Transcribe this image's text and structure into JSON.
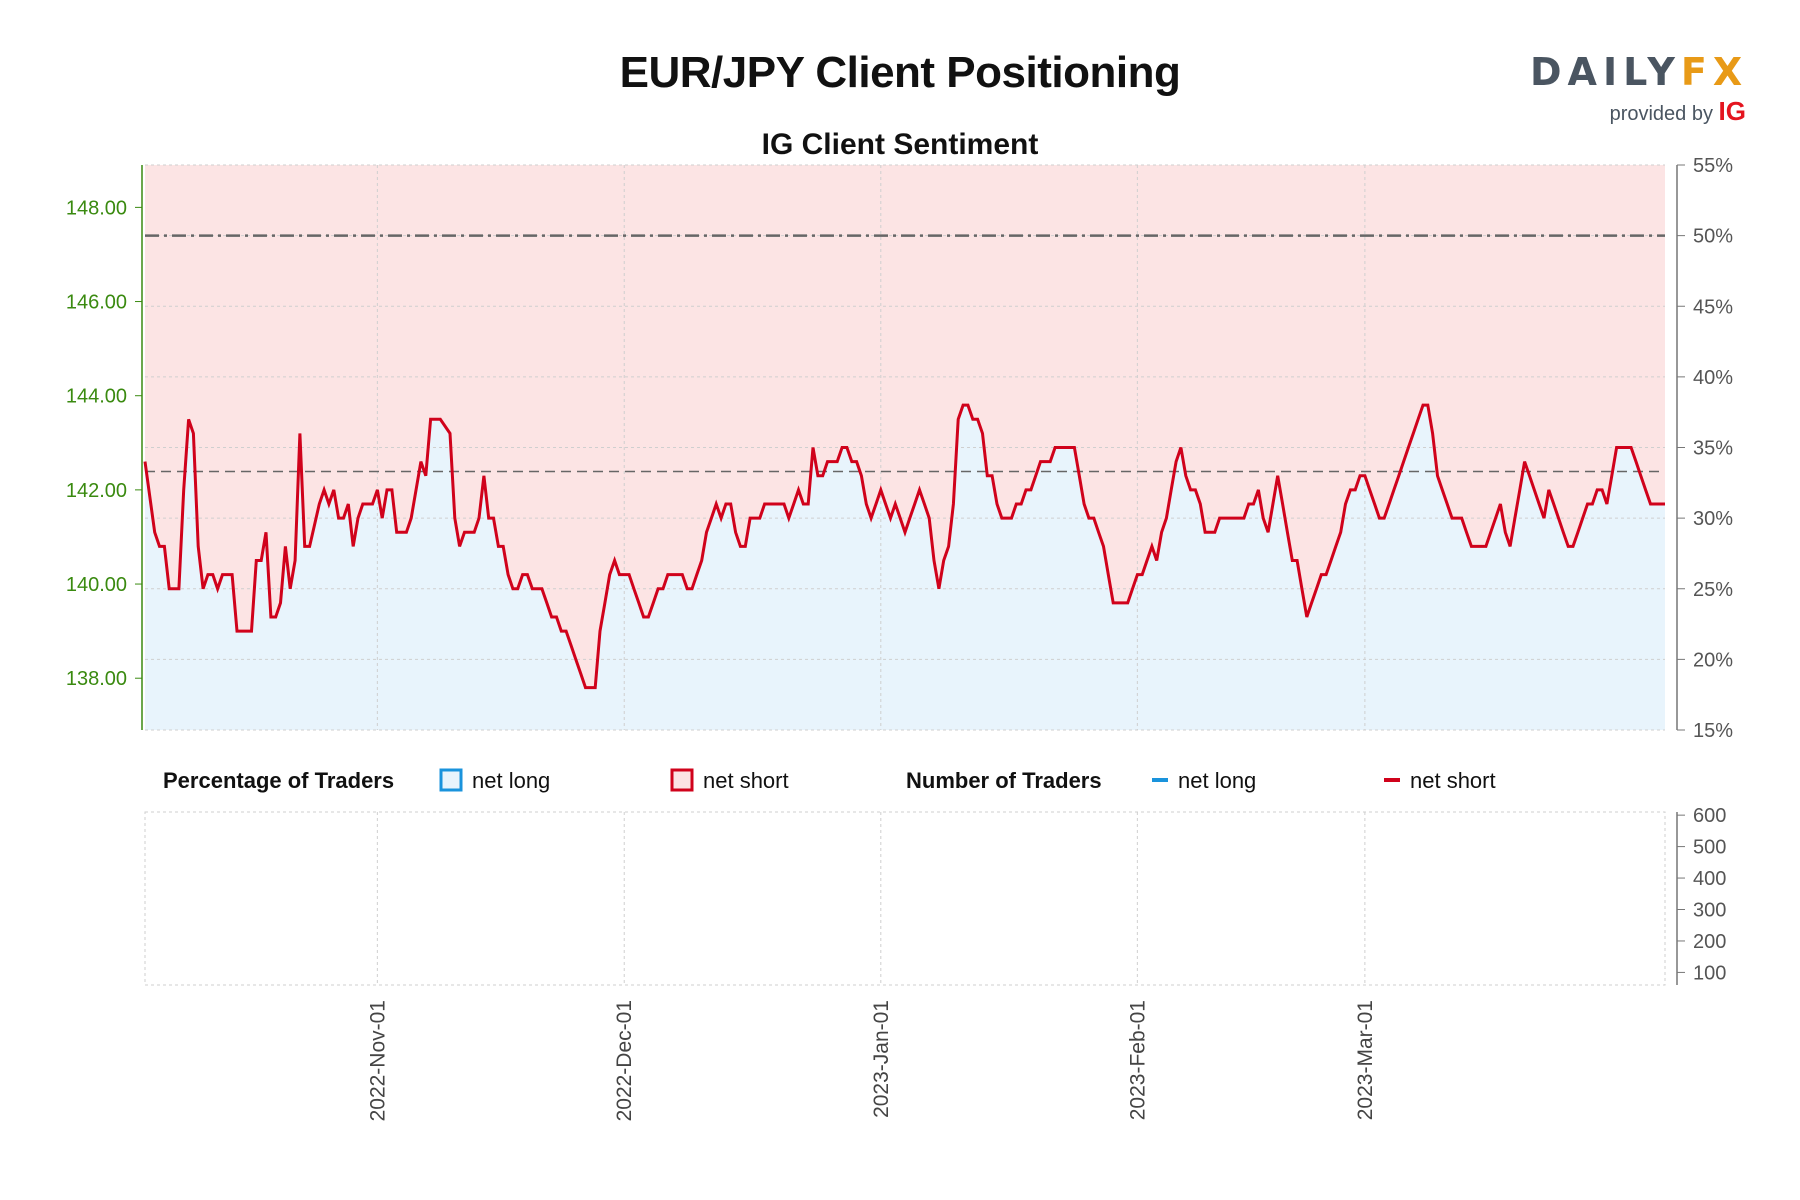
{
  "chart_data": {
    "type": "line",
    "title": "EUR/JPY Client Positioning",
    "subtitle": "IG Client Sentiment",
    "logo": {
      "brand_left": "DAILY",
      "brand_right": "FX",
      "provided_by": "provided by",
      "provider": "IG"
    },
    "colors": {
      "net_long": "#1a93dc",
      "net_short": "#d0021b",
      "long_fill": "#e8f4fc",
      "short_fill": "#fce4e4",
      "bull_candle": "#3a7d2a",
      "bear_candle": "#c62828",
      "price_axis": "#3a8a10"
    },
    "x_ticks": [
      "2022-Nov-01",
      "2022-Dec-01",
      "2023-Jan-01",
      "2023-Feb-01",
      "2023-Mar-01"
    ],
    "price_axis": {
      "ylim": [
        136.9,
        148.9
      ],
      "ticks": [
        "138.00",
        "140.00",
        "142.00",
        "144.00",
        "146.00",
        "148.00"
      ]
    },
    "sentiment_axis": {
      "ylim": [
        15,
        55
      ],
      "ticks": [
        "15%",
        "20%",
        "25%",
        "30%",
        "35%",
        "40%",
        "45%",
        "50%",
        "55%"
      ]
    },
    "traders_axis": {
      "ylim": [
        60,
        610
      ],
      "ticks": [
        "100",
        "200",
        "300",
        "400",
        "500",
        "600"
      ]
    },
    "ref_lines": [
      50,
      33.3
    ],
    "legend": {
      "pct_title": "Percentage of Traders",
      "pct_long": "net long",
      "pct_short": "net short",
      "num_title": "Number of Traders",
      "num_long": "net long",
      "num_short": "net short"
    },
    "series": [
      {
        "name": "net short",
        "metric": "percentage",
        "points": [
          [
            0,
            34
          ],
          [
            2,
            29
          ],
          [
            3,
            28
          ],
          [
            4,
            28
          ],
          [
            5,
            25
          ],
          [
            6,
            25
          ],
          [
            7,
            25
          ],
          [
            8,
            32
          ],
          [
            9,
            37
          ],
          [
            10,
            36
          ],
          [
            11,
            28
          ],
          [
            12,
            25
          ],
          [
            13,
            26
          ],
          [
            14,
            26
          ],
          [
            15,
            25
          ],
          [
            16,
            26
          ],
          [
            17,
            26
          ],
          [
            18,
            26
          ],
          [
            19,
            22
          ],
          [
            20,
            22
          ],
          [
            21,
            22
          ],
          [
            22,
            22
          ],
          [
            23,
            27
          ],
          [
            24,
            27
          ],
          [
            25,
            29
          ],
          [
            26,
            23
          ],
          [
            27,
            23
          ],
          [
            28,
            24
          ],
          [
            29,
            28
          ],
          [
            30,
            25
          ],
          [
            31,
            27
          ],
          [
            32,
            36
          ],
          [
            33,
            28
          ],
          [
            34,
            28
          ],
          [
            36,
            31
          ],
          [
            37,
            32
          ],
          [
            38,
            31
          ],
          [
            39,
            32
          ],
          [
            40,
            30
          ],
          [
            41,
            30
          ],
          [
            42,
            31
          ],
          [
            43,
            28
          ],
          [
            44,
            30
          ],
          [
            45,
            31
          ],
          [
            46,
            31
          ],
          [
            47,
            31
          ],
          [
            48,
            32
          ],
          [
            49,
            30
          ],
          [
            50,
            32
          ],
          [
            51,
            32
          ],
          [
            52,
            29
          ],
          [
            53,
            29
          ],
          [
            54,
            29
          ],
          [
            55,
            30
          ],
          [
            57,
            34
          ],
          [
            58,
            33
          ],
          [
            59,
            37
          ],
          [
            60,
            37
          ],
          [
            61,
            37
          ],
          [
            63,
            36
          ],
          [
            64,
            30
          ],
          [
            65,
            28
          ],
          [
            66,
            29
          ],
          [
            67,
            29
          ],
          [
            68,
            29
          ],
          [
            69,
            30
          ],
          [
            70,
            33
          ],
          [
            71,
            30
          ],
          [
            72,
            30
          ],
          [
            73,
            28
          ],
          [
            74,
            28
          ],
          [
            75,
            26
          ],
          [
            76,
            25
          ],
          [
            77,
            25
          ],
          [
            78,
            26
          ],
          [
            79,
            26
          ],
          [
            80,
            25
          ],
          [
            81,
            25
          ],
          [
            82,
            25
          ],
          [
            83,
            24
          ],
          [
            84,
            23
          ],
          [
            85,
            23
          ],
          [
            86,
            22
          ],
          [
            87,
            22
          ],
          [
            88,
            21
          ],
          [
            89,
            20
          ],
          [
            90,
            19
          ],
          [
            91,
            18
          ],
          [
            92,
            18
          ],
          [
            93,
            18
          ],
          [
            94,
            22
          ],
          [
            95,
            24
          ],
          [
            96,
            26
          ],
          [
            97,
            27
          ],
          [
            98,
            26
          ],
          [
            99,
            26
          ],
          [
            100,
            26
          ],
          [
            101,
            25
          ],
          [
            102,
            24
          ],
          [
            103,
            23
          ],
          [
            104,
            23
          ],
          [
            105,
            24
          ],
          [
            106,
            25
          ],
          [
            107,
            25
          ],
          [
            108,
            26
          ],
          [
            109,
            26
          ],
          [
            110,
            26
          ],
          [
            111,
            26
          ],
          [
            112,
            25
          ],
          [
            113,
            25
          ],
          [
            114,
            26
          ],
          [
            115,
            27
          ],
          [
            116,
            29
          ],
          [
            117,
            30
          ],
          [
            118,
            31
          ],
          [
            119,
            30
          ],
          [
            120,
            31
          ],
          [
            121,
            31
          ],
          [
            122,
            29
          ],
          [
            123,
            28
          ],
          [
            124,
            28
          ],
          [
            125,
            30
          ],
          [
            126,
            30
          ],
          [
            127,
            30
          ],
          [
            128,
            31
          ],
          [
            129,
            31
          ],
          [
            130,
            31
          ],
          [
            131,
            31
          ],
          [
            132,
            31
          ],
          [
            133,
            30
          ],
          [
            134,
            31
          ],
          [
            135,
            32
          ],
          [
            136,
            31
          ],
          [
            137,
            31
          ],
          [
            138,
            35
          ],
          [
            139,
            33
          ],
          [
            140,
            33
          ],
          [
            141,
            34
          ],
          [
            142,
            34
          ],
          [
            143,
            34
          ],
          [
            144,
            35
          ],
          [
            145,
            35
          ],
          [
            146,
            34
          ],
          [
            147,
            34
          ],
          [
            148,
            33
          ],
          [
            149,
            31
          ],
          [
            150,
            30
          ],
          [
            151,
            31
          ],
          [
            152,
            32
          ],
          [
            153,
            31
          ],
          [
            154,
            30
          ],
          [
            155,
            31
          ],
          [
            156,
            30
          ],
          [
            157,
            29
          ],
          [
            158,
            30
          ],
          [
            159,
            31
          ],
          [
            160,
            32
          ],
          [
            161,
            31
          ],
          [
            162,
            30
          ],
          [
            163,
            27
          ],
          [
            164,
            25
          ],
          [
            165,
            27
          ],
          [
            166,
            28
          ],
          [
            167,
            31
          ],
          [
            168,
            37
          ],
          [
            169,
            38
          ],
          [
            170,
            38
          ],
          [
            171,
            37
          ],
          [
            172,
            37
          ],
          [
            173,
            36
          ],
          [
            174,
            33
          ],
          [
            175,
            33
          ],
          [
            176,
            31
          ],
          [
            177,
            30
          ],
          [
            178,
            30
          ],
          [
            179,
            30
          ],
          [
            180,
            31
          ],
          [
            181,
            31
          ],
          [
            182,
            32
          ],
          [
            183,
            32
          ],
          [
            184,
            33
          ],
          [
            185,
            34
          ],
          [
            186,
            34
          ],
          [
            187,
            34
          ],
          [
            188,
            35
          ],
          [
            189,
            35
          ],
          [
            190,
            35
          ],
          [
            191,
            35
          ],
          [
            192,
            35
          ],
          [
            193,
            33
          ],
          [
            194,
            31
          ],
          [
            195,
            30
          ],
          [
            196,
            30
          ],
          [
            197,
            29
          ],
          [
            198,
            28
          ],
          [
            199,
            26
          ],
          [
            200,
            24
          ],
          [
            201,
            24
          ],
          [
            202,
            24
          ],
          [
            203,
            24
          ],
          [
            204,
            25
          ],
          [
            205,
            26
          ],
          [
            206,
            26
          ],
          [
            207,
            27
          ],
          [
            208,
            28
          ],
          [
            209,
            27
          ],
          [
            210,
            29
          ],
          [
            211,
            30
          ],
          [
            212,
            32
          ],
          [
            213,
            34
          ],
          [
            214,
            35
          ],
          [
            215,
            33
          ],
          [
            216,
            32
          ],
          [
            217,
            32
          ],
          [
            218,
            31
          ],
          [
            219,
            29
          ],
          [
            220,
            29
          ],
          [
            221,
            29
          ],
          [
            222,
            30
          ],
          [
            223,
            30
          ],
          [
            224,
            30
          ],
          [
            225,
            30
          ],
          [
            226,
            30
          ],
          [
            227,
            30
          ],
          [
            228,
            31
          ],
          [
            229,
            31
          ],
          [
            230,
            32
          ],
          [
            231,
            30
          ],
          [
            232,
            29
          ],
          [
            233,
            31
          ],
          [
            234,
            33
          ],
          [
            235,
            31
          ],
          [
            236,
            29
          ],
          [
            237,
            27
          ],
          [
            238,
            27
          ],
          [
            239,
            25
          ],
          [
            240,
            23
          ],
          [
            241,
            24
          ],
          [
            242,
            25
          ],
          [
            243,
            26
          ],
          [
            244,
            26
          ],
          [
            245,
            27
          ],
          [
            246,
            28
          ],
          [
            247,
            29
          ],
          [
            248,
            31
          ],
          [
            249,
            32
          ],
          [
            250,
            32
          ],
          [
            251,
            33
          ],
          [
            252,
            33
          ],
          [
            253,
            32
          ],
          [
            254,
            31
          ],
          [
            255,
            30
          ],
          [
            256,
            30
          ],
          [
            257,
            31
          ],
          [
            258,
            32
          ],
          [
            259,
            33
          ],
          [
            260,
            34
          ],
          [
            261,
            35
          ],
          [
            262,
            36
          ],
          [
            263,
            37
          ],
          [
            264,
            38
          ],
          [
            265,
            38
          ],
          [
            266,
            36
          ],
          [
            267,
            33
          ],
          [
            268,
            32
          ],
          [
            269,
            31
          ],
          [
            270,
            30
          ],
          [
            271,
            30
          ],
          [
            272,
            30
          ],
          [
            273,
            29
          ],
          [
            274,
            28
          ],
          [
            275,
            28
          ],
          [
            276,
            28
          ],
          [
            277,
            28
          ],
          [
            278,
            29
          ],
          [
            279,
            30
          ],
          [
            280,
            31
          ],
          [
            281,
            29
          ],
          [
            282,
            28
          ],
          [
            283,
            30
          ],
          [
            284,
            32
          ],
          [
            285,
            34
          ],
          [
            286,
            33
          ],
          [
            287,
            32
          ],
          [
            288,
            31
          ],
          [
            289,
            30
          ],
          [
            290,
            32
          ],
          [
            291,
            31
          ],
          [
            292,
            30
          ],
          [
            293,
            29
          ],
          [
            294,
            28
          ],
          [
            295,
            28
          ],
          [
            296,
            29
          ],
          [
            297,
            30
          ],
          [
            298,
            31
          ],
          [
            299,
            31
          ],
          [
            300,
            32
          ],
          [
            301,
            32
          ],
          [
            302,
            31
          ],
          [
            303,
            33
          ],
          [
            304,
            35
          ],
          [
            305,
            35
          ],
          [
            306,
            35
          ],
          [
            307,
            35
          ],
          [
            308,
            34
          ],
          [
            309,
            33
          ],
          [
            310,
            32
          ],
          [
            311,
            31
          ],
          [
            312,
            31
          ],
          [
            313,
            31
          ],
          [
            314,
            31
          ]
        ]
      }
    ]
  }
}
